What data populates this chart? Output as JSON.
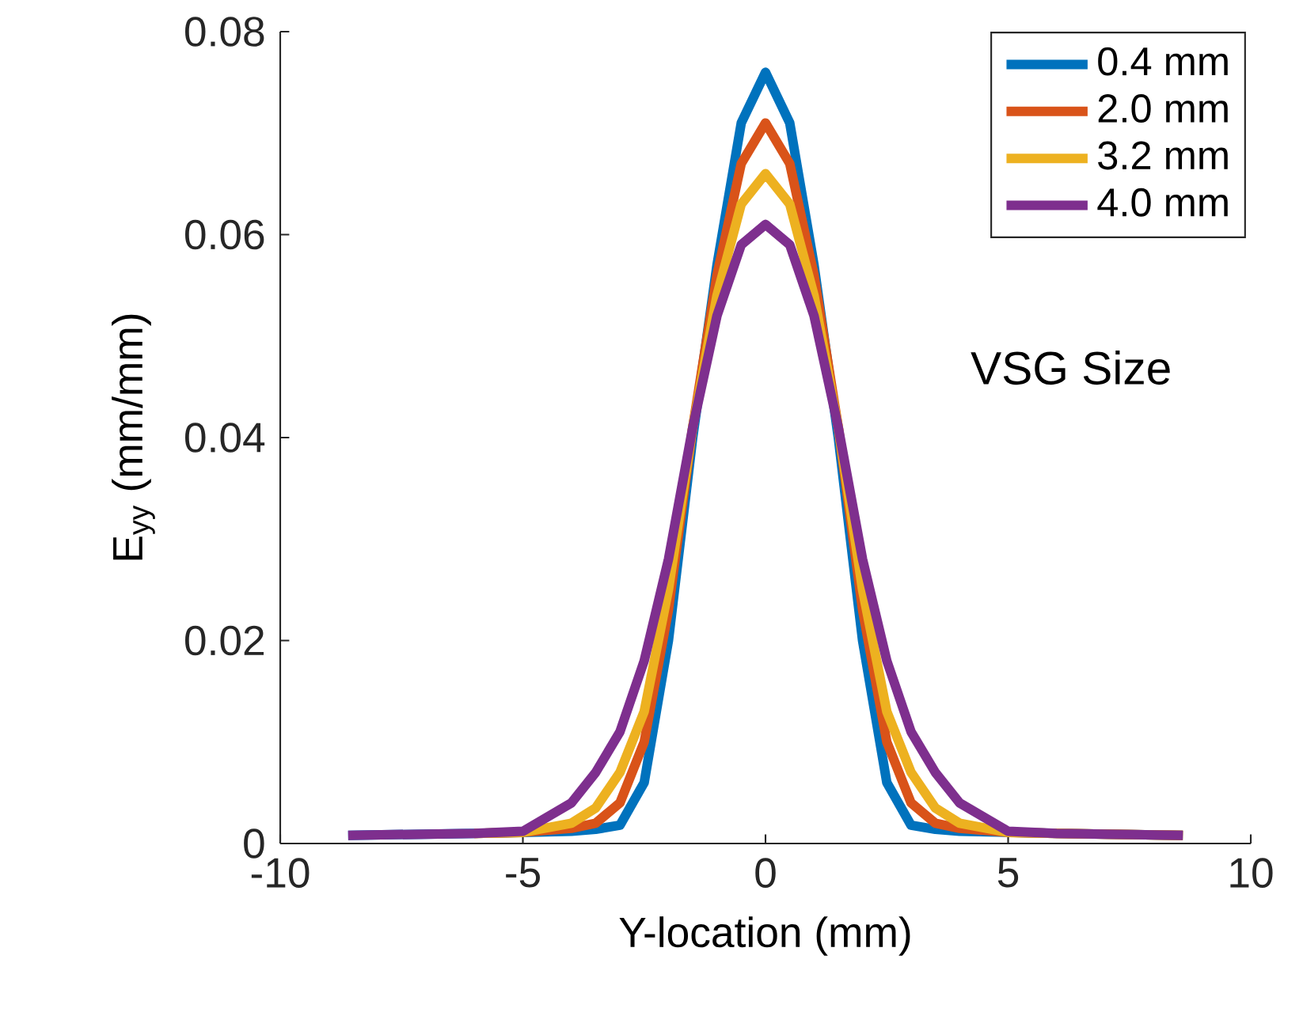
{
  "chart_data": {
    "type": "line",
    "xlabel": "Y-location (mm)",
    "ylabel": "E$_{yy}$ (mm/mm)",
    "legend_title": "VSG Size",
    "x": [
      -8.6,
      -6,
      -5,
      -4,
      -3.5,
      -3,
      -2.5,
      -2,
      -1.5,
      -1,
      -0.5,
      0,
      0.5,
      1,
      1.5,
      2,
      2.5,
      3,
      3.5,
      4,
      5,
      6,
      8.6
    ],
    "series": [
      {
        "name": "0.4 mm",
        "color": "#0072bd",
        "values": [
          0.0008,
          0.001,
          0.0011,
          0.0012,
          0.0014,
          0.0018,
          0.006,
          0.02,
          0.04,
          0.057,
          0.071,
          0.076,
          0.071,
          0.057,
          0.04,
          0.02,
          0.006,
          0.0018,
          0.0014,
          0.0012,
          0.0011,
          0.001,
          0.0008
        ]
      },
      {
        "name": "2.0 mm",
        "color": "#d95319",
        "values": [
          null,
          0.001,
          0.0011,
          0.0015,
          0.002,
          0.004,
          0.01,
          0.023,
          0.041,
          0.056,
          0.067,
          0.071,
          0.067,
          0.056,
          0.041,
          0.023,
          0.01,
          0.004,
          0.002,
          0.0015,
          0.0011,
          0.001,
          0.0008
        ]
      },
      {
        "name": "3.2 mm",
        "color": "#edb120",
        "values": [
          null,
          0.001,
          0.0011,
          0.002,
          0.0035,
          0.007,
          0.013,
          0.025,
          0.041,
          0.054,
          0.063,
          0.066,
          0.063,
          0.054,
          0.041,
          0.025,
          0.013,
          0.007,
          0.0035,
          0.002,
          0.0011,
          0.001,
          0.0008
        ]
      },
      {
        "name": "4.0 mm",
        "color": "#7e2f8e",
        "values": [
          0.0008,
          0.001,
          0.0012,
          0.004,
          0.007,
          0.011,
          0.018,
          0.028,
          0.041,
          0.052,
          0.059,
          0.061,
          0.059,
          0.052,
          0.041,
          0.028,
          0.018,
          0.011,
          0.007,
          0.004,
          0.0012,
          0.001,
          0.0008
        ]
      }
    ],
    "xlim": [
      -10,
      10
    ],
    "xticks": [
      -10,
      -5,
      0,
      5,
      10
    ],
    "ylim": [
      0,
      0.08
    ],
    "yticks": [
      0,
      0.02,
      0.04,
      0.06,
      0.08
    ],
    "legend": "top right",
    "grid": false,
    "marker": "none",
    "line_style": "solid"
  }
}
